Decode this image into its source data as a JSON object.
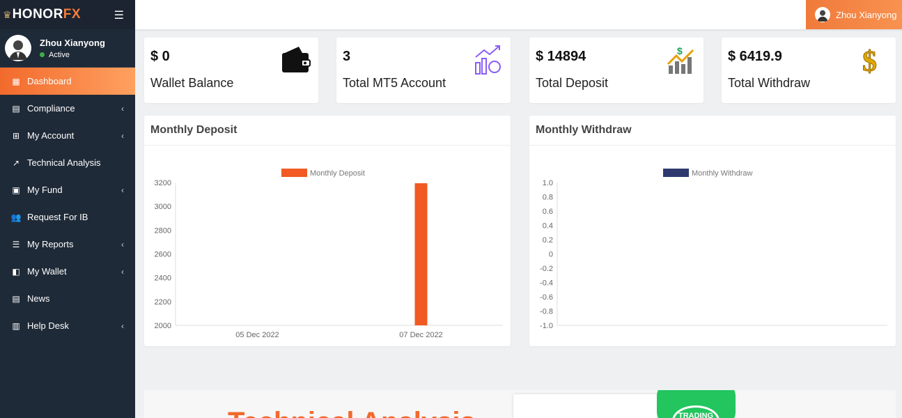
{
  "brand": {
    "name_main": "HONOR",
    "name_accent": "FX"
  },
  "user": {
    "name": "Zhou Xianyong",
    "status": "Active"
  },
  "menu": [
    {
      "label": "Dashboard",
      "icon": "grid-icon",
      "active": true,
      "chevron": false
    },
    {
      "label": "Compliance",
      "icon": "document-icon",
      "chevron": true
    },
    {
      "label": "My Account",
      "icon": "account-icon",
      "chevron": true
    },
    {
      "label": "Technical Analysis",
      "icon": "chart-line-icon",
      "chevron": false
    },
    {
      "label": "My Fund",
      "icon": "money-icon",
      "chevron": true
    },
    {
      "label": "Request For IB",
      "icon": "users-icon",
      "chevron": false
    },
    {
      "label": "My Reports",
      "icon": "list-icon",
      "chevron": true
    },
    {
      "label": "My Wallet",
      "icon": "wallet-icon",
      "chevron": true
    },
    {
      "label": "News",
      "icon": "news-icon",
      "chevron": false
    },
    {
      "label": "Help Desk",
      "icon": "help-icon",
      "chevron": true
    }
  ],
  "stats": [
    {
      "value": "$ 0",
      "label": "Wallet Balance",
      "icon": "wallet-icon"
    },
    {
      "value": "3",
      "label": "Total MT5 Account",
      "icon": "growth-icon"
    },
    {
      "value": "$ 14894",
      "label": "Total Deposit",
      "icon": "deposit-chart-icon"
    },
    {
      "value": "$ 6419.9",
      "label": "Total Withdraw",
      "icon": "dollar-icon"
    }
  ],
  "chart_data": [
    {
      "type": "bar",
      "title": "Monthly Deposit",
      "legend": "Monthly Deposit",
      "color": "#f15a22",
      "categories": [
        "05 Dec 2022",
        "07 Dec 2022"
      ],
      "values": [
        2000,
        3194
      ],
      "ylim": [
        2000,
        3200
      ],
      "yticks": [
        "3200",
        "3000",
        "2800",
        "2600",
        "2400",
        "2200",
        "2000"
      ],
      "legend_position": "top"
    },
    {
      "type": "bar",
      "title": "Monthly Withdraw",
      "legend": "Monthly Withdraw",
      "color": "#2e3a6e",
      "categories": [],
      "values": [],
      "ylim": [
        -1,
        1
      ],
      "yticks": [
        "1.0",
        "0.8",
        "0.6",
        "0.4",
        "0.2",
        "0",
        "-0.2",
        "-0.4",
        "-0.6",
        "-0.8",
        "-1.0"
      ],
      "legend_position": "top"
    }
  ],
  "banner": {
    "title": "Technical Analysis",
    "app_label": "TRADING"
  }
}
